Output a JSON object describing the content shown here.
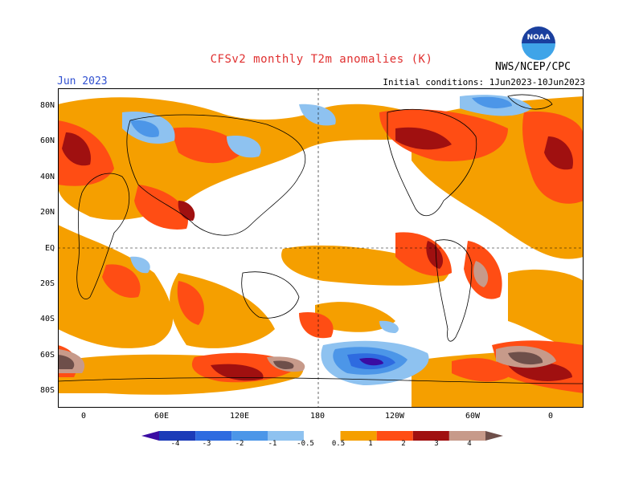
{
  "header": {
    "title": "CFSv2 monthly T2m anomalies (K)",
    "period": "Jun 2023",
    "initial_conditions": "Initial conditions: 1Jun2023-10Jun2023",
    "agency": "NWS/NCEP/CPC",
    "logo_text": "NOAA"
  },
  "map": {
    "lat_labels": [
      "80N",
      "60N",
      "40N",
      "20N",
      "EQ",
      "20S",
      "40S",
      "60S",
      "80S"
    ],
    "lon_labels": [
      "0",
      "60E",
      "120E",
      "180",
      "120W",
      "60W",
      "0"
    ],
    "projection": "cylindrical equidistant"
  },
  "legend": {
    "labels": [
      "-4",
      "-3",
      "-2",
      "-1",
      "-0.5",
      "0.5",
      "1",
      "2",
      "3",
      "4"
    ],
    "colors": [
      "#3a0ca3",
      "#1b3bb8",
      "#2e6be0",
      "#4c96e8",
      "#8ec2f0",
      "#ffffff",
      "#f59f00",
      "#ff4d14",
      "#a01010",
      "#c79a8a",
      "#6e4f4a"
    ]
  },
  "colors": {
    "title": "#e03030",
    "period": "#3050d0"
  }
}
